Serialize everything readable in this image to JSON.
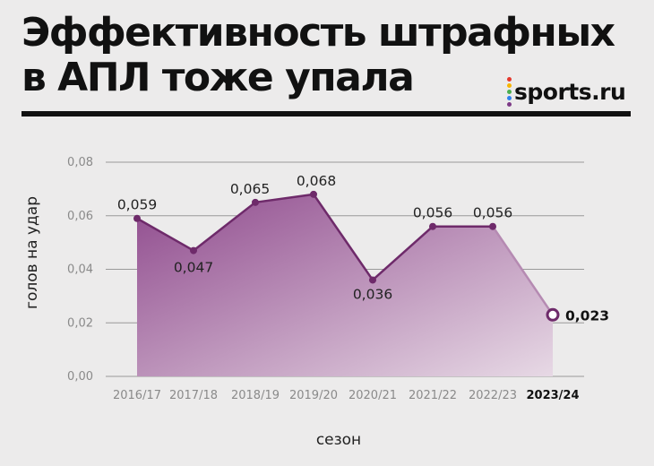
{
  "header": {
    "title_line1": "Эффективность штрафных",
    "title_line2": "в АПЛ тоже упала",
    "logo_text": "sports.ru",
    "logo_dot_colors": [
      "#e5392d",
      "#f7b500",
      "#4cae4f",
      "#2f80ed",
      "#7d3a86"
    ]
  },
  "colors": {
    "line": "#6e2a6a",
    "area_start": "#8f4a8d",
    "area_end": "#e7d9e5",
    "grid": "#9a9a9a"
  },
  "chart_data": {
    "type": "area",
    "categories": [
      "2016/17",
      "2017/18",
      "2018/19",
      "2019/20",
      "2020/21",
      "2021/22",
      "2022/23",
      "2023/24"
    ],
    "values": [
      0.059,
      0.047,
      0.065,
      0.068,
      0.036,
      0.056,
      0.056,
      0.023
    ],
    "value_labels": [
      "0,059",
      "0,047",
      "0,065",
      "0,068",
      "0,036",
      "0,056",
      "0,056",
      "0,023"
    ],
    "highlight_index": 7,
    "xlabel": "сезон",
    "ylabel": "голов на удар",
    "ylim": [
      0,
      0.08
    ],
    "yticks": [
      "0,00",
      "0,02",
      "0,04",
      "0,06",
      "0,08"
    ],
    "grid": true
  }
}
